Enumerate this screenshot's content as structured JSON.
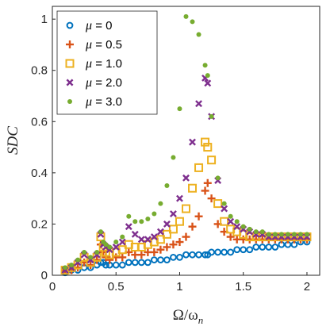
{
  "chart_data": {
    "type": "scatter",
    "title": "",
    "xlabel": "Ω/ωn",
    "xlabel_main": "Ω/ω",
    "xlabel_sub": "n",
    "ylabel": "SDC",
    "xlim": [
      0,
      2.1
    ],
    "ylim": [
      0,
      1.05
    ],
    "xticks": [
      0,
      0.5,
      1,
      1.5,
      2
    ],
    "xtick_labels": [
      "0",
      "0.5",
      "1",
      "1.5",
      "2"
    ],
    "yticks": [
      0,
      0.2,
      0.4,
      0.6,
      0.8,
      1
    ],
    "ytick_labels": [
      "0",
      "0.2",
      "0.4",
      "0.6",
      "0.8",
      "1"
    ],
    "grid": false,
    "legend_position": "top-left",
    "x": [
      0.1,
      0.15,
      0.2,
      0.25,
      0.3,
      0.35,
      0.38,
      0.4,
      0.42,
      0.45,
      0.5,
      0.55,
      0.6,
      0.65,
      0.7,
      0.75,
      0.8,
      0.85,
      0.9,
      0.95,
      1.0,
      1.05,
      1.1,
      1.15,
      1.2,
      1.22,
      1.25,
      1.3,
      1.35,
      1.4,
      1.45,
      1.5,
      1.55,
      1.6,
      1.65,
      1.7,
      1.75,
      1.8,
      1.85,
      1.9,
      1.95,
      2.0
    ],
    "series": [
      {
        "name": "μ = 0",
        "name_mu": "μ",
        "name_rest": " = 0",
        "marker": "circle",
        "color": "#0072BD",
        "values": [
          0.01,
          0.02,
          0.02,
          0.03,
          0.03,
          0.04,
          0.05,
          0.05,
          0.04,
          0.04,
          0.04,
          0.04,
          0.05,
          0.05,
          0.05,
          0.05,
          0.06,
          0.06,
          0.06,
          0.07,
          0.07,
          0.08,
          0.08,
          0.08,
          0.08,
          0.08,
          0.09,
          0.09,
          0.09,
          0.09,
          0.1,
          0.1,
          0.1,
          0.11,
          0.11,
          0.11,
          0.11,
          0.12,
          0.12,
          0.12,
          0.13,
          0.13
        ]
      },
      {
        "name": "μ = 0.5",
        "name_mu": "μ",
        "name_rest": " = 0.5",
        "marker": "plus",
        "color": "#D95319",
        "values": [
          0.02,
          0.02,
          0.03,
          0.05,
          0.04,
          0.06,
          0.12,
          0.09,
          0.07,
          0.06,
          0.07,
          0.07,
          0.09,
          0.08,
          0.08,
          0.09,
          0.09,
          0.1,
          0.11,
          0.12,
          0.13,
          0.15,
          0.19,
          0.23,
          0.33,
          0.36,
          0.3,
          0.2,
          0.17,
          0.15,
          0.14,
          0.14,
          0.14,
          0.14,
          0.14,
          0.14,
          0.14,
          0.14,
          0.14,
          0.14,
          0.14,
          0.14
        ]
      },
      {
        "name": "μ = 1.0",
        "name_mu": "μ",
        "name_rest": " = 1.0",
        "marker": "square",
        "color": "#EDB120",
        "values": [
          0.02,
          0.03,
          0.04,
          0.07,
          0.05,
          0.07,
          0.15,
          0.11,
          0.09,
          0.08,
          0.09,
          0.1,
          0.12,
          0.11,
          0.11,
          0.12,
          0.13,
          0.14,
          0.16,
          0.18,
          0.21,
          0.26,
          0.34,
          0.42,
          0.52,
          0.5,
          0.45,
          0.28,
          0.21,
          0.18,
          0.17,
          0.16,
          0.15,
          0.15,
          0.15,
          0.15,
          0.15,
          0.15,
          0.15,
          0.15,
          0.15,
          0.15
        ]
      },
      {
        "name": "μ = 2.0",
        "name_mu": "μ",
        "name_rest": " = 2.0",
        "marker": "x",
        "color": "#7E2F8E",
        "values": [
          0.02,
          0.03,
          0.05,
          0.08,
          0.06,
          0.08,
          0.16,
          0.12,
          0.11,
          0.1,
          0.11,
          0.13,
          0.19,
          0.16,
          0.14,
          0.14,
          0.15,
          0.17,
          0.2,
          0.24,
          0.3,
          0.38,
          0.52,
          0.67,
          0.77,
          0.75,
          0.62,
          0.37,
          0.26,
          0.21,
          0.19,
          0.18,
          0.17,
          0.16,
          0.16,
          0.15,
          0.15,
          0.15,
          0.15,
          0.15,
          0.15,
          0.15
        ]
      },
      {
        "name": "μ = 3.0",
        "name_mu": "μ",
        "name_rest": " = 3.0",
        "marker": "dot",
        "color": "#77AC30",
        "values": [
          0.03,
          0.04,
          0.06,
          0.09,
          0.07,
          0.09,
          0.17,
          0.13,
          0.12,
          0.11,
          0.13,
          0.15,
          0.23,
          0.21,
          0.21,
          0.22,
          0.24,
          0.28,
          0.35,
          0.46,
          0.65,
          1.01,
          0.99,
          0.94,
          0.82,
          0.78,
          0.62,
          0.38,
          0.28,
          0.23,
          0.21,
          0.19,
          0.18,
          0.17,
          0.17,
          0.16,
          0.16,
          0.16,
          0.16,
          0.16,
          0.16,
          0.16
        ]
      }
    ]
  }
}
